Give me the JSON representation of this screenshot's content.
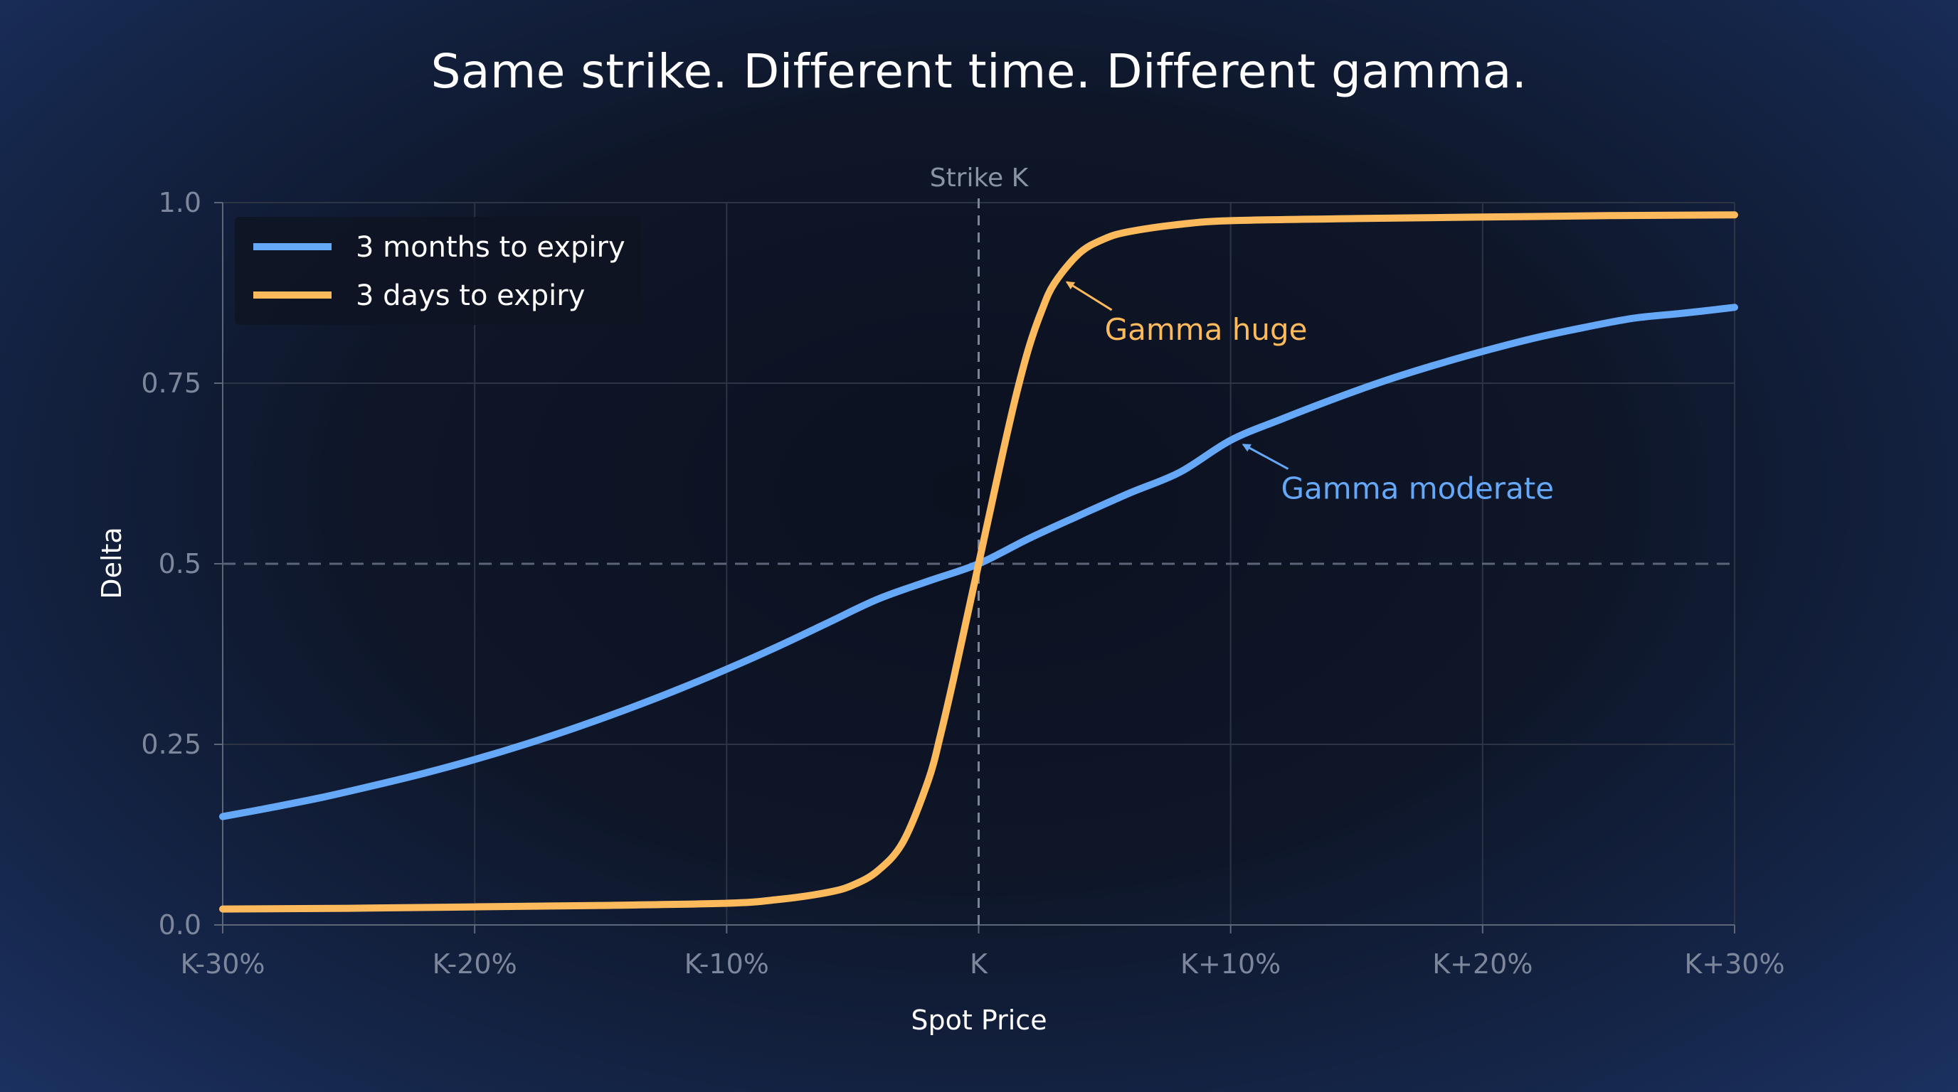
{
  "chart_data": {
    "type": "line",
    "title": "Same strike. Different time. Different gamma.",
    "xlabel": "Spot Price",
    "ylabel": "Delta",
    "x_range": [
      -30,
      30
    ],
    "ylim": [
      0,
      1
    ],
    "x_ticks": [
      {
        "value": -30,
        "label": "K-30%"
      },
      {
        "value": -20,
        "label": "K-20%"
      },
      {
        "value": -10,
        "label": "K-10%"
      },
      {
        "value": 0,
        "label": "K"
      },
      {
        "value": 10,
        "label": "K+10%"
      },
      {
        "value": 20,
        "label": "K+20%"
      },
      {
        "value": 30,
        "label": "K+30%"
      }
    ],
    "y_ticks": [
      {
        "value": 0,
        "label": "0.0"
      },
      {
        "value": 0.25,
        "label": "0.25"
      },
      {
        "value": 0.5,
        "label": "0.5"
      },
      {
        "value": 0.75,
        "label": "0.75"
      },
      {
        "value": 1,
        "label": "1.0"
      }
    ],
    "grid": true,
    "legend_position": "top-left",
    "strike_line": {
      "x": 0,
      "label": "Strike K"
    },
    "reference_line": {
      "y": 0.5
    },
    "series": [
      {
        "name": "3 months to expiry",
        "color": "#65a8f8",
        "points": [
          [
            -30,
            0.15
          ],
          [
            -28,
            0.163
          ],
          [
            -26,
            0.177
          ],
          [
            -24,
            0.193
          ],
          [
            -22,
            0.21
          ],
          [
            -20,
            0.229
          ],
          [
            -18,
            0.25
          ],
          [
            -16,
            0.273
          ],
          [
            -14,
            0.298
          ],
          [
            -12,
            0.325
          ],
          [
            -10,
            0.354
          ],
          [
            -8,
            0.385
          ],
          [
            -6,
            0.418
          ],
          [
            -4,
            0.451
          ],
          [
            -2,
            0.476
          ],
          [
            0,
            0.5
          ],
          [
            2,
            0.535
          ],
          [
            4,
            0.567
          ],
          [
            6,
            0.598
          ],
          [
            8,
            0.627
          ],
          [
            10,
            0.671
          ],
          [
            12,
            0.7
          ],
          [
            14,
            0.727
          ],
          [
            16,
            0.752
          ],
          [
            18,
            0.774
          ],
          [
            20,
            0.794
          ],
          [
            22,
            0.812
          ],
          [
            24,
            0.827
          ],
          [
            26,
            0.84
          ],
          [
            28,
            0.847
          ],
          [
            30,
            0.855
          ]
        ]
      },
      {
        "name": "3 days to expiry",
        "color": "#fdba5c",
        "points": [
          [
            -30,
            0.022
          ],
          [
            -25,
            0.023
          ],
          [
            -20,
            0.025
          ],
          [
            -15,
            0.027
          ],
          [
            -10,
            0.03
          ],
          [
            -8,
            0.035
          ],
          [
            -6,
            0.045
          ],
          [
            -5,
            0.055
          ],
          [
            -4,
            0.075
          ],
          [
            -3,
            0.115
          ],
          [
            -2,
            0.2
          ],
          [
            -1.5,
            0.265
          ],
          [
            -1,
            0.34
          ],
          [
            -0.5,
            0.42
          ],
          [
            0,
            0.5
          ],
          [
            0.5,
            0.58
          ],
          [
            1,
            0.66
          ],
          [
            1.5,
            0.735
          ],
          [
            2,
            0.8
          ],
          [
            2.5,
            0.85
          ],
          [
            3,
            0.888
          ],
          [
            4,
            0.93
          ],
          [
            5,
            0.95
          ],
          [
            6,
            0.96
          ],
          [
            8,
            0.97
          ],
          [
            10,
            0.975
          ],
          [
            15,
            0.978
          ],
          [
            20,
            0.98
          ],
          [
            25,
            0.982
          ],
          [
            30,
            0.983
          ]
        ]
      }
    ],
    "annotations": [
      {
        "text": "Gamma huge",
        "series": 1,
        "color": "#fdba5c",
        "arrow_to": [
          3.5,
          0.89
        ],
        "text_at": [
          5,
          0.81
        ]
      },
      {
        "text": "Gamma moderate",
        "series": 0,
        "color": "#65a8f8",
        "arrow_to": [
          10.5,
          0.665
        ],
        "text_at": [
          12,
          0.59
        ]
      }
    ]
  }
}
